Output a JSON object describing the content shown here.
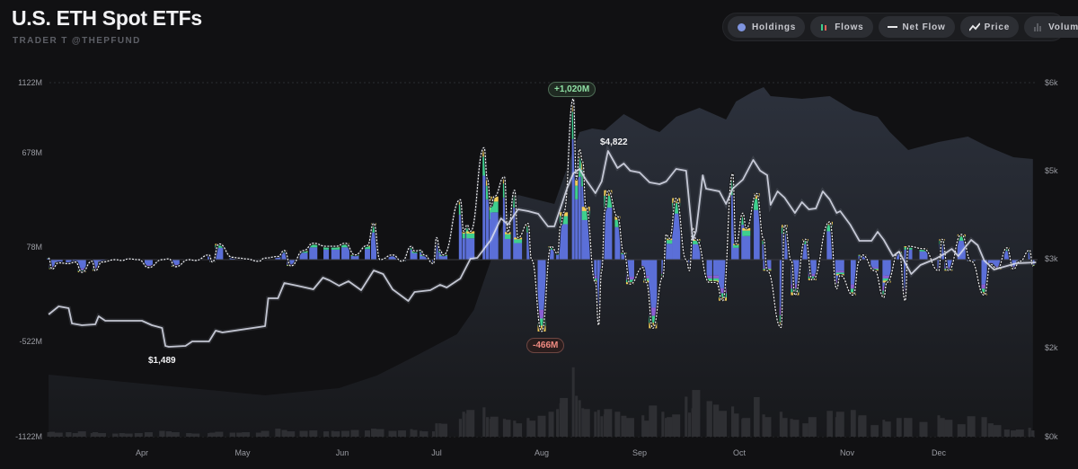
{
  "header": {
    "title": "U.S. ETH Spot ETFs",
    "subtitle": "TRADER T @THEPFUND"
  },
  "legend": [
    {
      "label": "Holdings",
      "icon": "dot-icon"
    },
    {
      "label": "Flows",
      "icon": "bars-icon"
    },
    {
      "label": "Net Flow",
      "icon": "dash-line-icon"
    },
    {
      "label": "Price",
      "icon": "line-icon"
    },
    {
      "label": "Volume",
      "icon": "volume-bars-icon"
    }
  ],
  "colors": {
    "background": "#111113",
    "flow_main": "#5b6fd8",
    "flow_green": "#3ecf8e",
    "flow_yellow": "#f1cd5a",
    "flow_purple": "#8b5fd2",
    "price": "#dfe2f0",
    "holdings": "#2a2e38",
    "volume": "#2e2f33",
    "positive": "#7fd99a",
    "negative": "#f08a80"
  },
  "chart_data": {
    "type": "bar",
    "left_axis": {
      "ticks": [
        "1122M",
        "678M",
        "78M",
        "-522M",
        "-1122M"
      ],
      "range": [
        -1122,
        1122
      ],
      "unit": "M"
    },
    "right_axis": {
      "ticks": [
        "$6k",
        "$5k",
        "$3k",
        "$2k",
        "$0k"
      ]
    },
    "x_ticks": [
      "Apr",
      "May",
      "Jun",
      "Jul",
      "Aug",
      "Sep",
      "Oct",
      "Nov",
      "Dec"
    ],
    "grid": true,
    "annotations": {
      "max_flow": "+1,020M",
      "min_flow": "-466M",
      "max_price": "$4,822",
      "min_price": "$1,489"
    },
    "flows": [
      {
        "d": "Mar 4",
        "net": 10,
        "vol": 100
      },
      {
        "d": "Mar 5",
        "net": -60,
        "vol": 110
      },
      {
        "d": "Mar 7",
        "net": -20,
        "vol": 90
      },
      {
        "d": "Mar 10",
        "net": -25,
        "vol": 100
      },
      {
        "d": "Mar 12",
        "net": -15,
        "vol": 80
      },
      {
        "d": "Mar 14",
        "net": -80,
        "vol": 120
      },
      {
        "d": "Mar 17",
        "net": -10,
        "vol": 80
      },
      {
        "d": "Mar 18",
        "net": -70,
        "vol": 100
      },
      {
        "d": "Mar 20",
        "net": -15,
        "vol": 80
      },
      {
        "d": "Mar 24",
        "net": 0,
        "vol": 70
      },
      {
        "d": "Mar 26",
        "net": -5,
        "vol": 80
      },
      {
        "d": "Mar 28",
        "net": 5,
        "vol": 70
      },
      {
        "d": "Mar 31",
        "net": 0,
        "vol": 80
      },
      {
        "d": "Apr 3",
        "net": -50,
        "vol": 100
      },
      {
        "d": "Apr 7",
        "net": 0,
        "vol": 130
      },
      {
        "d": "Apr 9",
        "net": 5,
        "vol": 120
      },
      {
        "d": "Apr 11",
        "net": -45,
        "vol": 100
      },
      {
        "d": "Apr 15",
        "net": 0,
        "vol": 80
      },
      {
        "d": "Apr 17",
        "net": -5,
        "vol": 70
      },
      {
        "d": "Apr 21",
        "net": 30,
        "vol": 80
      },
      {
        "d": "Apr 22",
        "net": -15,
        "vol": 90
      },
      {
        "d": "Apr 24",
        "net": 100,
        "vol": 110
      },
      {
        "d": "Apr 28",
        "net": 15,
        "vol": 90
      },
      {
        "d": "Apr 30",
        "net": 10,
        "vol": 90
      },
      {
        "d": "May 2",
        "net": 5,
        "vol": 100
      },
      {
        "d": "May 6",
        "net": -10,
        "vol": 90
      },
      {
        "d": "May 8",
        "net": 10,
        "vol": 130
      },
      {
        "d": "May 12",
        "net": 20,
        "vol": 180
      },
      {
        "d": "May 14",
        "net": 58,
        "vol": 150
      },
      {
        "d": "May 16",
        "net": -40,
        "vol": 120
      },
      {
        "d": "May 20",
        "net": 58,
        "vol": 130
      },
      {
        "d": "May 23",
        "net": 104,
        "vol": 140
      },
      {
        "d": "May 27",
        "net": 85,
        "vol": 120
      },
      {
        "d": "May 29",
        "net": 85,
        "vol": 130
      },
      {
        "d": "May 30",
        "net": 85,
        "vol": 120
      },
      {
        "d": "Jun 2",
        "net": 104,
        "vol": 130
      },
      {
        "d": "Jun 5",
        "net": 30,
        "vol": 150
      },
      {
        "d": "Jun 9",
        "net": 90,
        "vol": 140
      },
      {
        "d": "Jun 11",
        "net": 230,
        "vol": 180
      },
      {
        "d": "Jun 13",
        "net": 0,
        "vol": 170
      },
      {
        "d": "Jun 17",
        "net": 30,
        "vol": 130
      },
      {
        "d": "Jun 20",
        "net": -10,
        "vol": 140
      },
      {
        "d": "Jun 23",
        "net": 85,
        "vol": 170
      },
      {
        "d": "Jun 24",
        "net": 55,
        "vol": 150
      },
      {
        "d": "Jun 26",
        "net": 60,
        "vol": 130
      },
      {
        "d": "Jun 27",
        "net": 30,
        "vol": 120
      },
      {
        "d": "Jun 30",
        "net": -25,
        "vol": 120
      },
      {
        "d": "Jul 1",
        "net": 140,
        "vol": 300
      },
      {
        "d": "Jul 2",
        "net": 60,
        "vol": 300
      },
      {
        "d": "Jul 3",
        "net": 30,
        "vol": 290
      },
      {
        "d": "Jul 8",
        "net": 380,
        "vol": 400
      },
      {
        "d": "Jul 9",
        "net": 180,
        "vol": 560
      },
      {
        "d": "Jul 10",
        "net": 220,
        "vol": 520
      },
      {
        "d": "Jul 11",
        "net": 180,
        "vol": 600
      },
      {
        "d": "Jul 15",
        "net": 710,
        "vol": 660
      },
      {
        "d": "Jul 16",
        "net": 510,
        "vol": 440
      },
      {
        "d": "Jul 17",
        "net": 340,
        "vol": 400
      },
      {
        "d": "Jul 18",
        "net": 400,
        "vol": 450
      },
      {
        "d": "Jul 21",
        "net": 525,
        "vol": 400
      },
      {
        "d": "Jul 22",
        "net": 175,
        "vol": 380
      },
      {
        "d": "Jul 24",
        "net": 440,
        "vol": 360
      },
      {
        "d": "Jul 25",
        "net": 140,
        "vol": 300
      },
      {
        "d": "Jul 28",
        "net": 230,
        "vol": 420
      },
      {
        "d": "Jul 29",
        "net": 0,
        "vol": 360
      },
      {
        "d": "Aug 1",
        "net": -455,
        "vol": 470
      },
      {
        "d": "Aug 4",
        "net": 85,
        "vol": 560
      },
      {
        "d": "Aug 6",
        "net": 40,
        "vol": 620
      },
      {
        "d": "Aug 7",
        "net": 220,
        "vol": 750
      },
      {
        "d": "Aug 8",
        "net": 300,
        "vol": 870
      },
      {
        "d": "Aug 11",
        "net": 1020,
        "vol": 1560
      },
      {
        "d": "Aug 12",
        "net": 510,
        "vol": 920
      },
      {
        "d": "Aug 13",
        "net": 700,
        "vol": 820
      },
      {
        "d": "Aug 14",
        "net": 620,
        "vol": 640
      },
      {
        "d": "Aug 15",
        "net": 335,
        "vol": 620
      },
      {
        "d": "Aug 18",
        "net": -145,
        "vol": 560
      },
      {
        "d": "Aug 19",
        "net": -415,
        "vol": 600
      },
      {
        "d": "Aug 20",
        "net": -70,
        "vol": 460
      },
      {
        "d": "Aug 21",
        "net": 315,
        "vol": 500
      },
      {
        "d": "Aug 22",
        "net": 440,
        "vol": 620
      },
      {
        "d": "Aug 25",
        "net": 275,
        "vol": 560
      },
      {
        "d": "Aug 27",
        "net": 45,
        "vol": 470
      },
      {
        "d": "Aug 29",
        "net": -155,
        "vol": 420
      },
      {
        "d": "Sep 2",
        "net": -50,
        "vol": 480
      },
      {
        "d": "Sep 3",
        "net": -145,
        "vol": 360
      },
      {
        "d": "Sep 5",
        "net": -435,
        "vol": 700
      },
      {
        "d": "Sep 8",
        "net": -110,
        "vol": 560
      },
      {
        "d": "Sep 9",
        "net": 160,
        "vol": 420
      },
      {
        "d": "Sep 10",
        "net": 135,
        "vol": 440
      },
      {
        "d": "Sep 12",
        "net": 390,
        "vol": 500
      },
      {
        "d": "Sep 15",
        "net": 0,
        "vol": 900
      },
      {
        "d": "Sep 16",
        "net": -70,
        "vol": 540
      },
      {
        "d": "Sep 17",
        "net": 200,
        "vol": 640
      },
      {
        "d": "Sep 18",
        "net": 130,
        "vol": 1050
      },
      {
        "d": "Sep 22",
        "net": -145,
        "vol": 800
      },
      {
        "d": "Sep 24",
        "net": -145,
        "vol": 720
      },
      {
        "d": "Sep 26",
        "net": -260,
        "vol": 580
      },
      {
        "d": "Sep 29",
        "net": 545,
        "vol": 680
      },
      {
        "d": "Sep 30",
        "net": 100,
        "vol": 520
      },
      {
        "d": "Oct 2",
        "net": 295,
        "vol": 400
      },
      {
        "d": "Oct 3",
        "net": 200,
        "vol": 420
      },
      {
        "d": "Oct 6",
        "net": 420,
        "vol": 890
      },
      {
        "d": "Oct 8",
        "net": 130,
        "vol": 500
      },
      {
        "d": "Oct 9",
        "net": -70,
        "vol": 440
      },
      {
        "d": "Oct 13",
        "net": -430,
        "vol": 560
      },
      {
        "d": "Oct 14",
        "net": 220,
        "vol": 420
      },
      {
        "d": "Oct 16",
        "net": -10,
        "vol": 400
      },
      {
        "d": "Oct 17",
        "net": -225,
        "vol": 380
      },
      {
        "d": "Oct 20",
        "net": 130,
        "vol": 300
      },
      {
        "d": "Oct 22",
        "net": -130,
        "vol": 440
      },
      {
        "d": "Oct 27",
        "net": 240,
        "vol": 580
      },
      {
        "d": "Oct 29",
        "net": -185,
        "vol": 440
      },
      {
        "d": "Oct 30",
        "net": -100,
        "vol": 560
      },
      {
        "d": "Nov 3",
        "net": -225,
        "vol": 600
      },
      {
        "d": "Nov 5",
        "net": -10,
        "vol": 440
      },
      {
        "d": "Nov 6",
        "net": 30,
        "vol": 480
      },
      {
        "d": "Nov 10",
        "net": -70,
        "vol": 260
      },
      {
        "d": "Nov 13",
        "net": -240,
        "vol": 380
      },
      {
        "d": "Nov 14",
        "net": -145,
        "vol": 340
      },
      {
        "d": "Nov 18",
        "net": 50,
        "vol": 420
      },
      {
        "d": "Nov 20",
        "net": -260,
        "vol": 420
      },
      {
        "d": "Nov 21",
        "net": 85,
        "vol": 420
      },
      {
        "d": "Nov 26",
        "net": 70,
        "vol": 330
      },
      {
        "d": "Dec 1",
        "net": -70,
        "vol": 480
      },
      {
        "d": "Dec 2",
        "net": 130,
        "vol": 420
      },
      {
        "d": "Dec 4",
        "net": -70,
        "vol": 380
      },
      {
        "d": "Dec 8",
        "net": 160,
        "vol": 280
      },
      {
        "d": "Dec 11",
        "net": -10,
        "vol": 460
      },
      {
        "d": "Dec 15",
        "net": -225,
        "vol": 440
      },
      {
        "d": "Dec 17",
        "net": -30,
        "vol": 300
      },
      {
        "d": "Dec 19",
        "net": -60,
        "vol": 260
      },
      {
        "d": "Dec 22",
        "net": 75,
        "vol": 160
      },
      {
        "d": "Dec 24",
        "net": -60,
        "vol": 140
      },
      {
        "d": "Dec 26",
        "net": -10,
        "vol": 160
      },
      {
        "d": "Dec 29",
        "net": 60,
        "vol": 200
      },
      {
        "d": "Dec 30",
        "net": -40,
        "vol": 140
      }
    ],
    "price": [
      [
        "Mar 4",
        2040
      ],
      [
        "Mar 7",
        2177
      ],
      [
        "Mar 10",
        2146
      ],
      [
        "Mar 11",
        1887
      ],
      [
        "Mar 14",
        1856
      ],
      [
        "Mar 18",
        1871
      ],
      [
        "Mar 19",
        2009
      ],
      [
        "Mar 21",
        1932
      ],
      [
        "Apr 1",
        1932
      ],
      [
        "Apr 4",
        1856
      ],
      [
        "Apr 7",
        1810
      ],
      [
        "Apr 8",
        1504
      ],
      [
        "Apr 9",
        1489
      ],
      [
        "Apr 14",
        1504
      ],
      [
        "Apr 16",
        1580
      ],
      [
        "Apr 21",
        1580
      ],
      [
        "Apr 23",
        1764
      ],
      [
        "Apr 25",
        1733
      ],
      [
        "May 8",
        1840
      ],
      [
        "May 9",
        2315
      ],
      [
        "May 12",
        2315
      ],
      [
        "May 14",
        2575
      ],
      [
        "May 18",
        2529
      ],
      [
        "May 23",
        2468
      ],
      [
        "May 26",
        2666
      ],
      [
        "May 28",
        2620
      ],
      [
        "May 31",
        2529
      ],
      [
        "Jun 3",
        2605
      ],
      [
        "Jun 7",
        2452
      ],
      [
        "Jun 11",
        2789
      ],
      [
        "Jun 14",
        2727
      ],
      [
        "Jun 17",
        2468
      ],
      [
        "Jun 22",
        2269
      ],
      [
        "Jun 24",
        2422
      ],
      [
        "Jun 29",
        2452
      ],
      [
        "Jul 2",
        2544
      ],
      [
        "Jul 4",
        2498
      ],
      [
        "Jul 8",
        2651
      ],
      [
        "Jul 11",
        2987
      ],
      [
        "Jul 13",
        3003
      ],
      [
        "Jul 17",
        3308
      ],
      [
        "Jul 20",
        3675
      ],
      [
        "Jul 22",
        3568
      ],
      [
        "Jul 25",
        3828
      ],
      [
        "Jul 28",
        3798
      ],
      [
        "Jul 31",
        3752
      ],
      [
        "Aug 3",
        3538
      ],
      [
        "Aug 5",
        3538
      ],
      [
        "Aug 9",
        4180
      ],
      [
        "Aug 11",
        4440
      ],
      [
        "Aug 13",
        4516
      ],
      [
        "Aug 15",
        4333
      ],
      [
        "Aug 18",
        4104
      ],
      [
        "Aug 20",
        4302
      ],
      [
        "Aug 22",
        4822
      ],
      [
        "Aug 25",
        4532
      ],
      [
        "Aug 27",
        4608
      ],
      [
        "Aug 29",
        4486
      ],
      [
        "Sep 1",
        4455
      ],
      [
        "Sep 4",
        4287
      ],
      [
        "Sep 7",
        4257
      ],
      [
        "Sep 9",
        4302
      ],
      [
        "Sep 12",
        4516
      ],
      [
        "Sep 15",
        4486
      ],
      [
        "Sep 17",
        3308
      ],
      [
        "Sep 18",
        3461
      ],
      [
        "Sep 20",
        4409
      ],
      [
        "Sep 21",
        4180
      ],
      [
        "Sep 25",
        4134
      ],
      [
        "Sep 27",
        3920
      ],
      [
        "Sep 29",
        4180
      ],
      [
        "Oct 2",
        4333
      ],
      [
        "Oct 5",
        4669
      ],
      [
        "Oct 7",
        4486
      ],
      [
        "Oct 9",
        4409
      ],
      [
        "Oct 10",
        3905
      ],
      [
        "Oct 12",
        4134
      ],
      [
        "Oct 14",
        4027
      ],
      [
        "Oct 17",
        3767
      ],
      [
        "Oct 19",
        3951
      ],
      [
        "Oct 21",
        3828
      ],
      [
        "Oct 23",
        3843
      ],
      [
        "Oct 25",
        4134
      ],
      [
        "Oct 27",
        3997
      ],
      [
        "Oct 29",
        3767
      ],
      [
        "Oct 30",
        3798
      ],
      [
        "Nov 2",
        3568
      ],
      [
        "Nov 5",
        3293
      ],
      [
        "Nov 9",
        3293
      ],
      [
        "Nov 11",
        3446
      ],
      [
        "Nov 13",
        3308
      ],
      [
        "Nov 16",
        3033
      ],
      [
        "Nov 18",
        3110
      ],
      [
        "Nov 22",
        2727
      ],
      [
        "Nov 25",
        2880
      ],
      [
        "Nov 30",
        2987
      ],
      [
        "Dec 3",
        3079
      ],
      [
        "Dec 5",
        3156
      ],
      [
        "Dec 7",
        3033
      ],
      [
        "Dec 11",
        3308
      ],
      [
        "Dec 13",
        3217
      ],
      [
        "Dec 15",
        2957
      ],
      [
        "Dec 18",
        2804
      ],
      [
        "Dec 21",
        2850
      ],
      [
        "Dec 25",
        2911
      ],
      [
        "Dec 31",
        2926
      ]
    ],
    "holdings": [
      [
        "Mar 4",
        1394
      ],
      [
        "May 8",
        929
      ],
      [
        "May 31",
        1091
      ],
      [
        "Jun 12",
        1374
      ],
      [
        "Jun 25",
        1838
      ],
      [
        "Jul 7",
        2152
      ],
      [
        "Jul 12",
        2424
      ],
      [
        "Jul 17",
        2980
      ],
      [
        "Jul 21",
        3878
      ],
      [
        "Jul 25",
        4449
      ],
      [
        "Aug 5",
        4245
      ],
      [
        "Aug 13",
        5439
      ],
      [
        "Aug 17",
        5480
      ],
      [
        "Aug 21",
        5459
      ],
      [
        "Aug 27",
        5643
      ],
      [
        "Sep 4",
        5480
      ],
      [
        "Sep 7",
        5439
      ],
      [
        "Sep 12",
        5612
      ],
      [
        "Sep 19",
        5714
      ],
      [
        "Sep 27",
        5582
      ],
      [
        "Sep 30",
        5786
      ],
      [
        "Oct 5",
        5898
      ],
      [
        "Oct 8",
        5949
      ],
      [
        "Oct 10",
        5847
      ],
      [
        "Oct 19",
        5816
      ],
      [
        "Oct 27",
        5847
      ],
      [
        "Nov 3",
        5684
      ],
      [
        "Nov 11",
        5612
      ],
      [
        "Nov 15",
        5439
      ],
      [
        "Nov 21",
        5235
      ],
      [
        "Dec 1",
        5327
      ],
      [
        "Dec 10",
        5388
      ],
      [
        "Dec 16",
        5276
      ],
      [
        "Dec 24",
        5153
      ],
      [
        "Dec 30",
        5133
      ]
    ]
  }
}
